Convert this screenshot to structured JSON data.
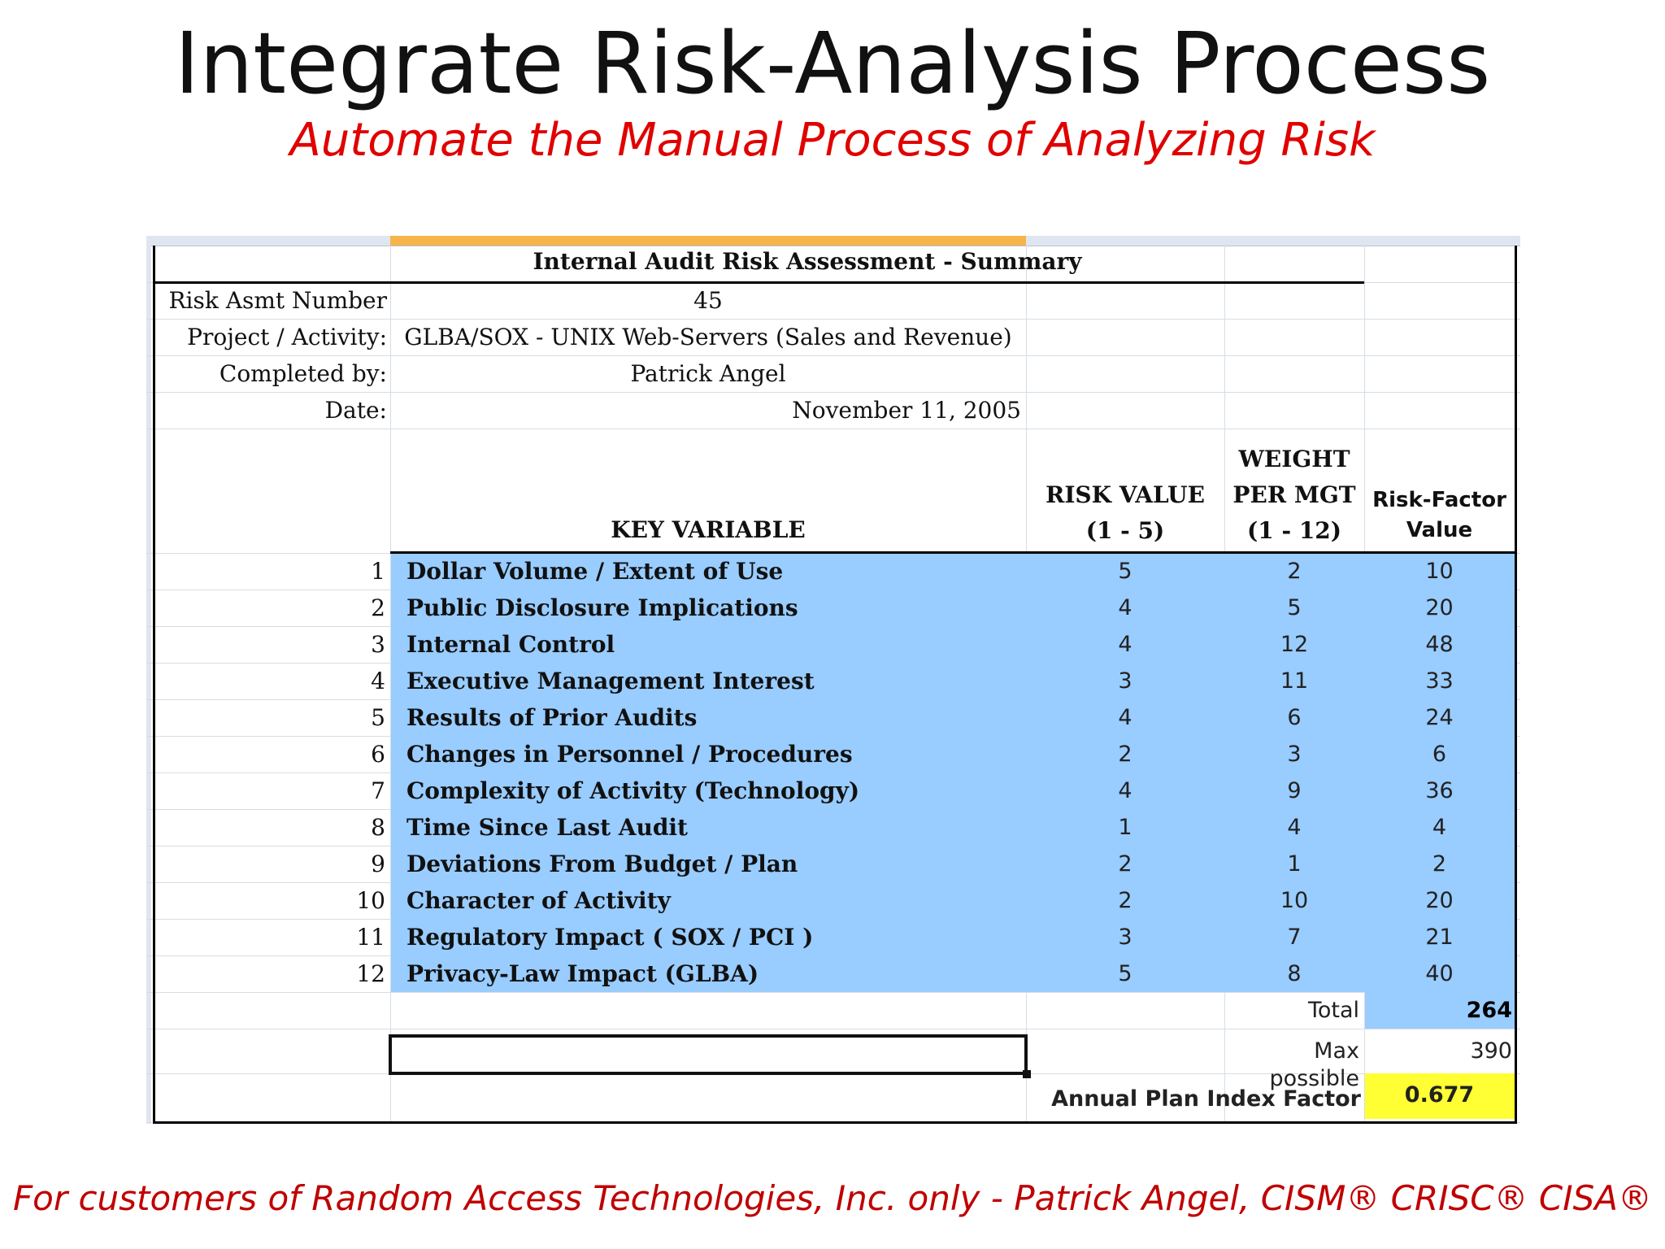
{
  "slide": {
    "title": "Integrate Risk-Analysis Process",
    "subtitle": "Automate the Manual Process of Analyzing Risk",
    "footer": "For customers of Random Access Technologies, Inc. only - Patrick Angel, CISM® CRISC® CISA®"
  },
  "sheet": {
    "heading": "Internal Audit Risk Assessment - Summary",
    "info": [
      {
        "label": "Risk Asmt Number",
        "value": "45"
      },
      {
        "label": "Project / Activity:",
        "value": "GLBA/SOX - UNIX Web-Servers (Sales and Revenue)"
      },
      {
        "label": "Completed by:",
        "value": "Patrick Angel"
      },
      {
        "label": "Date:",
        "value": "November 11, 2005"
      }
    ],
    "headers": {
      "key_variable": "KEY VARIABLE",
      "risk_value_1": "RISK VALUE",
      "risk_value_2": "(1 - 5)",
      "weight_1": "WEIGHT",
      "weight_2": "PER MGT",
      "weight_3": "(1 - 12)",
      "factor_1": "Risk-Factor",
      "factor_2": "Value"
    },
    "rows": [
      {
        "n": "1",
        "name": "Dollar Volume / Extent of Use",
        "risk": "5",
        "weight": "2",
        "factor": "10"
      },
      {
        "n": "2",
        "name": "Public Disclosure Implications",
        "risk": "4",
        "weight": "5",
        "factor": "20"
      },
      {
        "n": "3",
        "name": "Internal Control",
        "risk": "4",
        "weight": "12",
        "factor": "48"
      },
      {
        "n": "4",
        "name": "Executive Management Interest",
        "risk": "3",
        "weight": "11",
        "factor": "33"
      },
      {
        "n": "5",
        "name": "Results of Prior Audits",
        "risk": "4",
        "weight": "6",
        "factor": "24"
      },
      {
        "n": "6",
        "name": "Changes in Personnel / Procedures",
        "risk": "2",
        "weight": "3",
        "factor": "6"
      },
      {
        "n": "7",
        "name": "Complexity of Activity (Technology)",
        "risk": "4",
        "weight": "9",
        "factor": "36"
      },
      {
        "n": "8",
        "name": "Time Since Last Audit",
        "risk": "1",
        "weight": "4",
        "factor": "4"
      },
      {
        "n": "9",
        "name": "Deviations From Budget / Plan",
        "risk": "2",
        "weight": "1",
        "factor": "2"
      },
      {
        "n": "10",
        "name": "Character of Activity",
        "risk": "2",
        "weight": "10",
        "factor": "20"
      },
      {
        "n": "11",
        "name": "Regulatory Impact ( SOX / PCI )",
        "risk": "3",
        "weight": "7",
        "factor": "21"
      },
      {
        "n": "12",
        "name": "Privacy-Law Impact (GLBA)",
        "risk": "5",
        "weight": "8",
        "factor": "40"
      }
    ],
    "totals": {
      "total_label": "Total",
      "total_value": "264",
      "max_label": "Max possible",
      "max_value": "390",
      "index_label": "Annual Plan Index Factor",
      "index_value": "0.677"
    }
  }
}
